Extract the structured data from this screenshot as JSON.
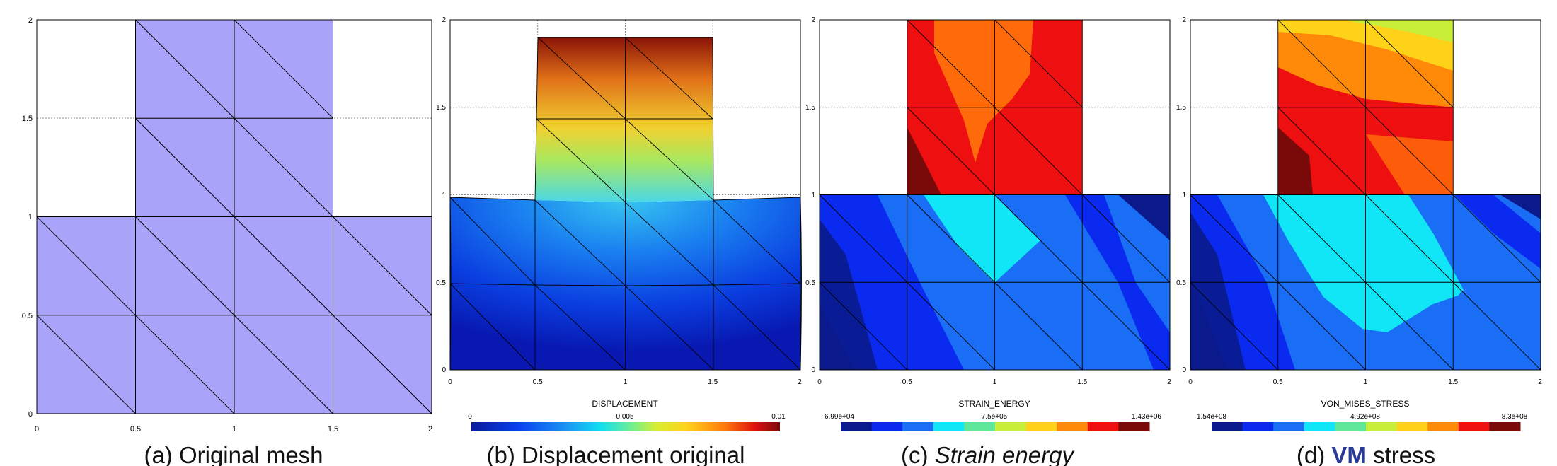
{
  "panels": {
    "a": {
      "caption": "(a) Original mesh",
      "x_ticks": [
        "0",
        "0.5",
        "1",
        "1.5",
        "2"
      ],
      "y_ticks": [
        "0",
        "0.5",
        "1",
        "1.5",
        "2"
      ],
      "fill": "#aaa3fa"
    },
    "b": {
      "caption": "(b) Displacement original",
      "x_ticks": [
        "0",
        "0.5",
        "1",
        "1.5",
        "2"
      ],
      "y_ticks": [
        "0",
        "0.5",
        "1",
        "1.5",
        "2"
      ],
      "colorbar": {
        "title": "DISPLACEMENT",
        "min": "0",
        "mid": "0.005",
        "max": "0.01"
      }
    },
    "c": {
      "caption_plain": "(c) ",
      "caption_em": "Strain energy",
      "x_ticks": [
        "0",
        "0.5",
        "1",
        "1.5",
        "2"
      ],
      "y_ticks": [
        "0",
        "0.5",
        "1",
        "1.5",
        "2"
      ],
      "colorbar": {
        "title": "STRAIN_ENERGY",
        "min": "6.99e+04",
        "mid": "7.5e+05",
        "max": "1.43e+06"
      }
    },
    "d": {
      "caption_plain1": "(d) ",
      "caption_vm": "VM",
      "caption_plain2": " stress",
      "x_ticks": [
        "0",
        "0.5",
        "1",
        "1.5",
        "2"
      ],
      "y_ticks": [
        "0",
        "0.5",
        "1",
        "1.5",
        "2"
      ],
      "colorbar": {
        "title": "VON_MISES_STRESS",
        "min": "1.54e+08",
        "mid": "4.92e+08",
        "max": "8.3e+08"
      }
    }
  },
  "colormap": [
    "#0a1a8c",
    "#0a2af0",
    "#1a6ef5",
    "#10e6f5",
    "#5fe89a",
    "#c8ee3a",
    "#ffd21a",
    "#ff8a0a",
    "#ee1010",
    "#7a0a0a"
  ],
  "colors": {
    "grid": "#888888",
    "edge": "#000000",
    "vm_accent": "#2a3a9a"
  }
}
